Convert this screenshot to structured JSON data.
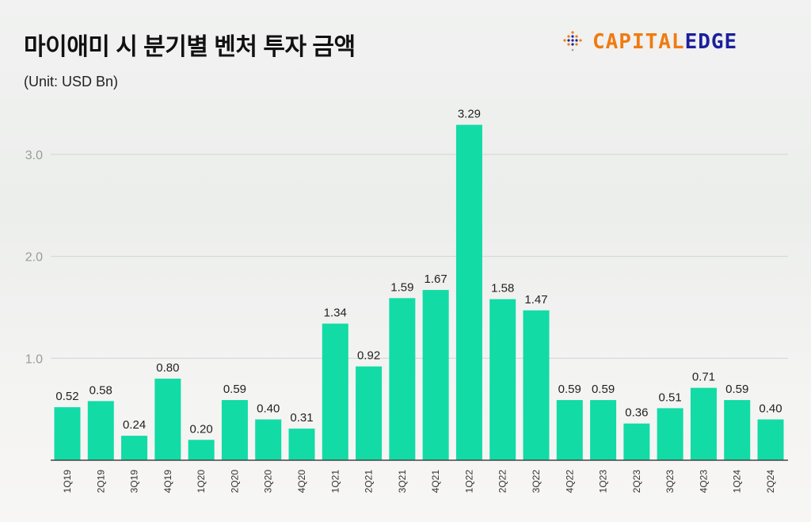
{
  "chart_data": {
    "type": "bar",
    "title": "마이애미 시 분기별 벤처 투자 금액",
    "subtitle": "(Unit: USD Bn)",
    "categories": [
      "1Q19",
      "2Q19",
      "3Q19",
      "4Q19",
      "1Q20",
      "2Q20",
      "3Q20",
      "4Q20",
      "1Q21",
      "2Q21",
      "3Q21",
      "4Q21",
      "1Q22",
      "2Q22",
      "3Q22",
      "4Q22",
      "1Q23",
      "2Q23",
      "3Q23",
      "4Q23",
      "1Q24",
      "2Q24"
    ],
    "values": [
      0.52,
      0.58,
      0.24,
      0.8,
      0.2,
      0.59,
      0.4,
      0.31,
      1.34,
      0.92,
      1.59,
      1.67,
      3.29,
      1.58,
      1.47,
      0.59,
      0.59,
      0.36,
      0.51,
      0.71,
      0.59,
      0.4
    ],
    "yticks": [
      "1.0",
      "2.0",
      "3.0"
    ],
    "ylim": [
      0,
      3.3
    ],
    "grid": true,
    "bar_color": "#12dba6"
  },
  "logo": {
    "part1": "CAPITAL",
    "part2": "EDGE",
    "color1": "#f07b10",
    "color2": "#1c1f9c"
  }
}
